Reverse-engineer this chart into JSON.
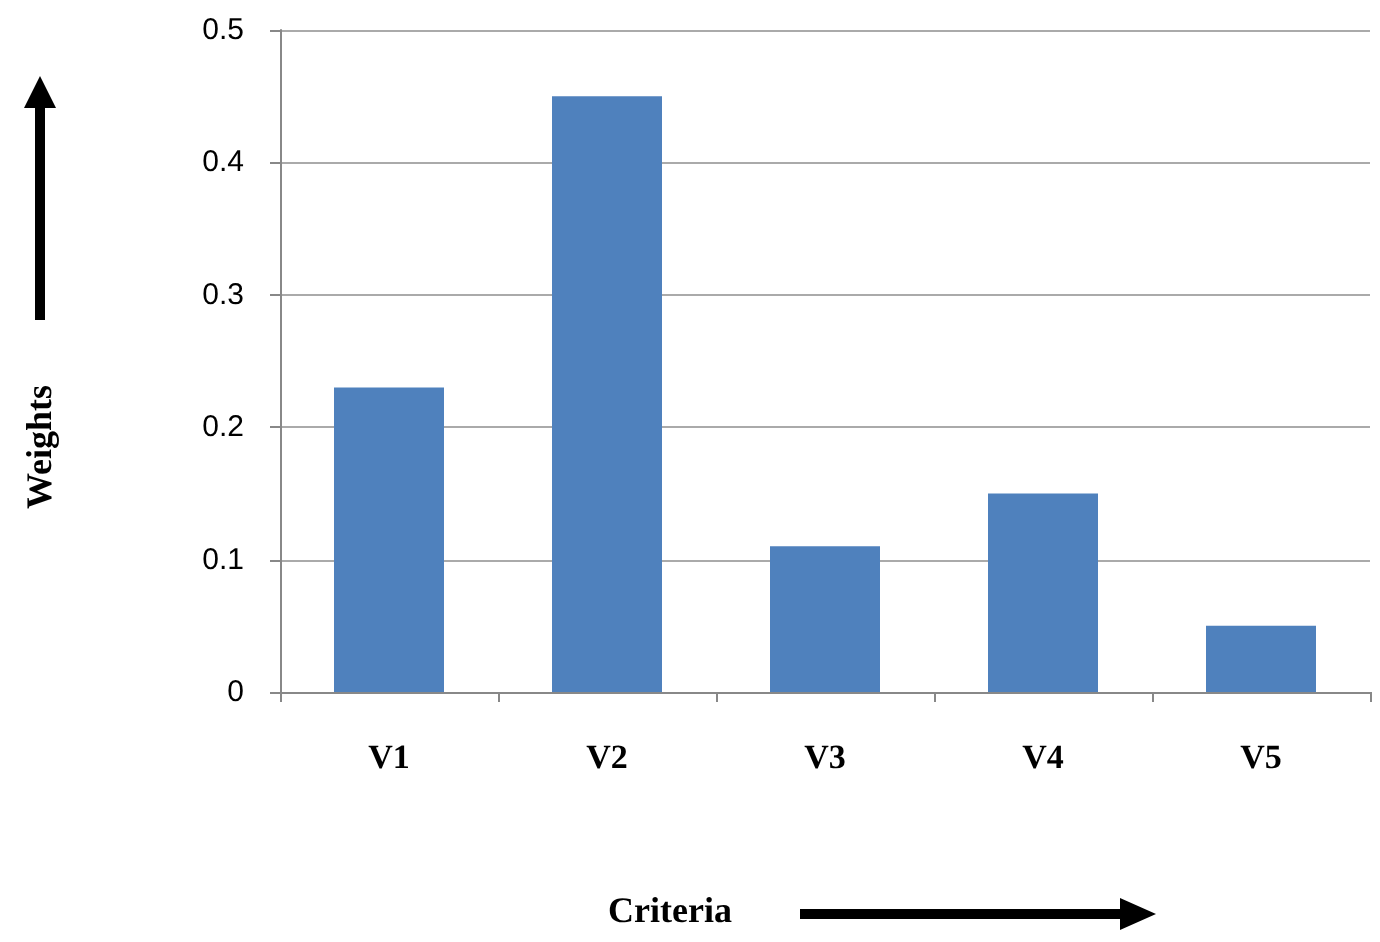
{
  "chart_data": {
    "type": "bar",
    "xlabel": "Criteria",
    "ylabel": "Weights",
    "categories": [
      "V1",
      "V2",
      "V3",
      "V4",
      "V5"
    ],
    "values": [
      0.23,
      0.45,
      0.11,
      0.15,
      0.05
    ],
    "color": "#4f81bd",
    "ylim": [
      0,
      0.5
    ],
    "yticks": [
      0,
      0.1,
      0.2,
      0.3,
      0.4,
      0.5
    ],
    "grid": "y"
  }
}
